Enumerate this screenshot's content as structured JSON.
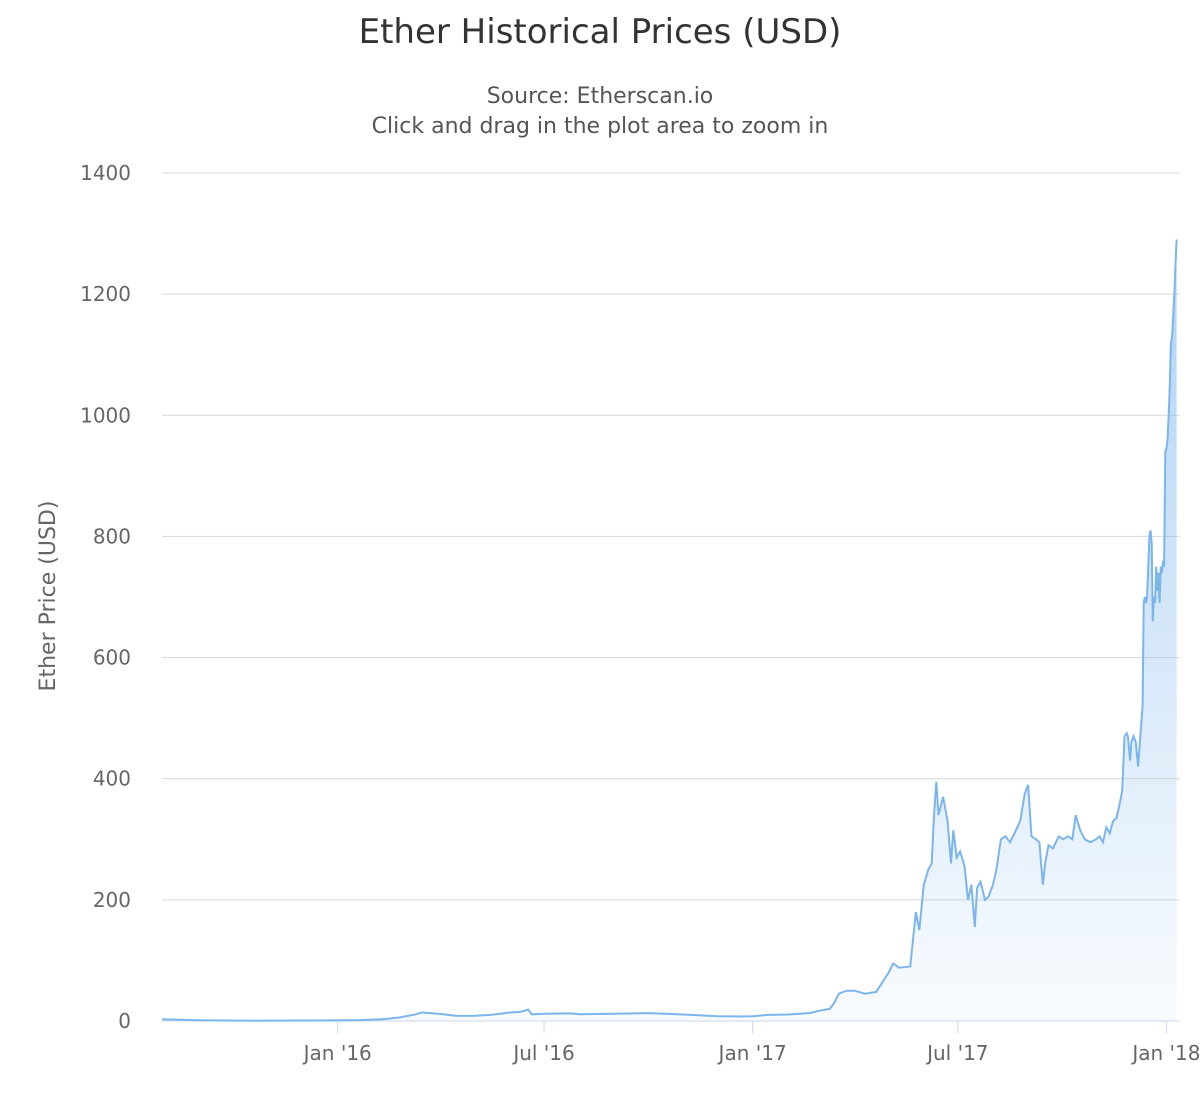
{
  "chart": {
    "title": "Ether Historical Prices (USD)",
    "subtitle_lines": [
      "Source: Etherscan.io",
      "Click and drag in the plot area to zoom in"
    ]
  },
  "colors": {
    "line": "#7cb5ec",
    "grid": "#d8d8d8",
    "axis": "#ccd6eb",
    "text": "#666666"
  },
  "chart_data": {
    "type": "area",
    "title": "Ether Historical Prices (USD)",
    "subtitle": "Source: Etherscan.io",
    "xlabel": "",
    "ylabel": "Ether Price (USD)",
    "ylim": [
      0,
      1400
    ],
    "xlim": [
      "2015-07-30",
      "2018-01-13"
    ],
    "yticks": [
      0,
      200,
      400,
      600,
      800,
      1000,
      1200,
      1400
    ],
    "xticks": [
      {
        "date": "2016-01-01",
        "label": "Jan '16"
      },
      {
        "date": "2016-07-01",
        "label": "Jul '16"
      },
      {
        "date": "2017-01-01",
        "label": "Jan '17"
      },
      {
        "date": "2017-07-01",
        "label": "Jul '17"
      },
      {
        "date": "2018-01-01",
        "label": "Jan '18"
      }
    ],
    "grid": true,
    "legend": "none",
    "series": [
      {
        "values": [
          [
            "2015-07-30",
            2.8
          ],
          [
            "2015-09-01",
            1.3
          ],
          [
            "2015-10-20",
            0.5
          ],
          [
            "2015-12-01",
            0.9
          ],
          [
            "2016-01-01",
            0.95
          ],
          [
            "2016-01-20",
            1.5
          ],
          [
            "2016-02-10",
            3
          ],
          [
            "2016-02-25",
            6
          ],
          [
            "2016-03-10",
            11
          ],
          [
            "2016-03-15",
            14
          ],
          [
            "2016-04-01",
            11.5
          ],
          [
            "2016-04-15",
            8.5
          ],
          [
            "2016-05-01",
            8.8
          ],
          [
            "2016-05-15",
            10
          ],
          [
            "2016-06-01",
            14
          ],
          [
            "2016-06-10",
            15
          ],
          [
            "2016-06-17",
            19
          ],
          [
            "2016-06-20",
            11
          ],
          [
            "2016-07-01",
            12
          ],
          [
            "2016-07-25",
            12.5
          ],
          [
            "2016-08-01",
            11
          ],
          [
            "2016-09-01",
            12
          ],
          [
            "2016-10-01",
            13
          ],
          [
            "2016-10-15",
            12
          ],
          [
            "2016-11-01",
            10.8
          ],
          [
            "2016-12-01",
            8
          ],
          [
            "2016-12-20",
            7.5
          ],
          [
            "2017-01-01",
            8
          ],
          [
            "2017-01-15",
            10
          ],
          [
            "2017-02-01",
            10.7
          ],
          [
            "2017-02-20",
            13
          ],
          [
            "2017-03-01",
            17
          ],
          [
            "2017-03-10",
            20
          ],
          [
            "2017-03-14",
            30
          ],
          [
            "2017-03-18",
            45
          ],
          [
            "2017-03-25",
            50
          ],
          [
            "2017-04-01",
            50
          ],
          [
            "2017-04-10",
            45
          ],
          [
            "2017-04-20",
            48
          ],
          [
            "2017-05-01",
            80
          ],
          [
            "2017-05-05",
            95
          ],
          [
            "2017-05-10",
            88
          ],
          [
            "2017-05-20",
            90
          ],
          [
            "2017-05-25",
            180
          ],
          [
            "2017-05-28",
            150
          ],
          [
            "2017-06-01",
            225
          ],
          [
            "2017-06-05",
            250
          ],
          [
            "2017-06-08",
            260
          ],
          [
            "2017-06-10",
            340
          ],
          [
            "2017-06-12",
            395
          ],
          [
            "2017-06-14",
            340
          ],
          [
            "2017-06-18",
            370
          ],
          [
            "2017-06-22",
            330
          ],
          [
            "2017-06-25",
            260
          ],
          [
            "2017-06-27",
            315
          ],
          [
            "2017-06-30",
            270
          ],
          [
            "2017-07-03",
            280
          ],
          [
            "2017-07-07",
            255
          ],
          [
            "2017-07-10",
            200
          ],
          [
            "2017-07-13",
            225
          ],
          [
            "2017-07-16",
            155
          ],
          [
            "2017-07-18",
            220
          ],
          [
            "2017-07-21",
            230
          ],
          [
            "2017-07-25",
            200
          ],
          [
            "2017-07-28",
            205
          ],
          [
            "2017-08-01",
            225
          ],
          [
            "2017-08-04",
            250
          ],
          [
            "2017-08-08",
            300
          ],
          [
            "2017-08-12",
            305
          ],
          [
            "2017-08-16",
            295
          ],
          [
            "2017-08-20",
            310
          ],
          [
            "2017-08-25",
            330
          ],
          [
            "2017-08-29",
            375
          ],
          [
            "2017-09-01",
            390
          ],
          [
            "2017-09-04",
            305
          ],
          [
            "2017-09-08",
            300
          ],
          [
            "2017-09-11",
            295
          ],
          [
            "2017-09-14",
            225
          ],
          [
            "2017-09-16",
            260
          ],
          [
            "2017-09-19",
            290
          ],
          [
            "2017-09-23",
            285
          ],
          [
            "2017-09-28",
            305
          ],
          [
            "2017-10-02",
            300
          ],
          [
            "2017-10-06",
            305
          ],
          [
            "2017-10-10",
            300
          ],
          [
            "2017-10-13",
            340
          ],
          [
            "2017-10-17",
            315
          ],
          [
            "2017-10-21",
            300
          ],
          [
            "2017-10-26",
            295
          ],
          [
            "2017-10-31",
            300
          ],
          [
            "2017-11-03",
            305
          ],
          [
            "2017-11-06",
            295
          ],
          [
            "2017-11-09",
            320
          ],
          [
            "2017-11-12",
            310
          ],
          [
            "2017-11-15",
            330
          ],
          [
            "2017-11-18",
            335
          ],
          [
            "2017-11-21",
            360
          ],
          [
            "2017-11-23",
            380
          ],
          [
            "2017-11-25",
            470
          ],
          [
            "2017-11-27",
            475
          ],
          [
            "2017-11-28",
            470
          ],
          [
            "2017-11-30",
            430
          ],
          [
            "2017-12-01",
            460
          ],
          [
            "2017-12-03",
            470
          ],
          [
            "2017-12-05",
            460
          ],
          [
            "2017-12-07",
            420
          ],
          [
            "2017-12-09",
            470
          ],
          [
            "2017-12-11",
            520
          ],
          [
            "2017-12-12",
            690
          ],
          [
            "2017-12-13",
            700
          ],
          [
            "2017-12-14",
            690
          ],
          [
            "2017-12-15",
            700
          ],
          [
            "2017-12-17",
            800
          ],
          [
            "2017-12-18",
            810
          ],
          [
            "2017-12-19",
            790
          ],
          [
            "2017-12-20",
            660
          ],
          [
            "2017-12-21",
            700
          ],
          [
            "2017-12-22",
            690
          ],
          [
            "2017-12-23",
            750
          ],
          [
            "2017-12-24",
            710
          ],
          [
            "2017-12-25",
            740
          ],
          [
            "2017-12-26",
            690
          ],
          [
            "2017-12-27",
            750
          ],
          [
            "2017-12-28",
            740
          ],
          [
            "2017-12-29",
            760
          ],
          [
            "2017-12-30",
            750
          ],
          [
            "2017-12-31",
            940
          ],
          [
            "2018-01-01",
            945
          ],
          [
            "2018-01-02",
            960
          ],
          [
            "2018-01-03",
            1000
          ],
          [
            "2018-01-04",
            1050
          ],
          [
            "2018-01-05",
            1120
          ],
          [
            "2018-01-06",
            1130
          ],
          [
            "2018-01-08",
            1200
          ],
          [
            "2018-01-09",
            1250
          ],
          [
            "2018-01-10",
            1290
          ]
        ]
      }
    ]
  }
}
